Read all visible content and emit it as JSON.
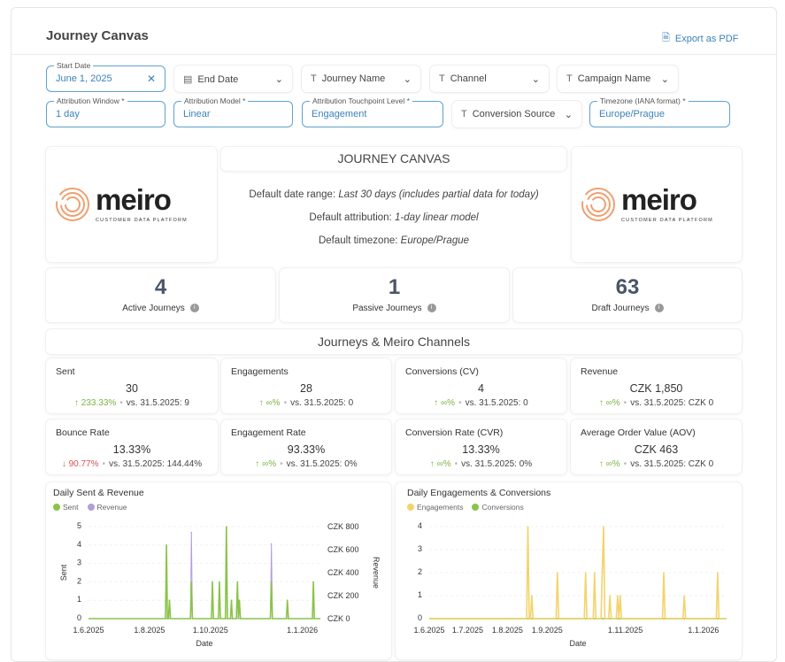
{
  "header": {
    "title": "Journey Canvas",
    "export_label": "Export as PDF"
  },
  "filters": {
    "start_date": {
      "label": "Start Date",
      "value": "June 1, 2025"
    },
    "end_date": {
      "label": "End Date"
    },
    "journey_name": {
      "label": "Journey Name"
    },
    "channel": {
      "label": "Channel"
    },
    "campaign_name": {
      "label": "Campaign Name"
    },
    "attribution_window": {
      "label": "Attribution Window *",
      "value": "1 day"
    },
    "attribution_model": {
      "label": "Attribution Model *",
      "value": "Linear"
    },
    "touchpoint_level": {
      "label": "Attribution Touchpoint Level *",
      "value": "Engagement"
    },
    "conversion_source": {
      "label": "Conversion Source"
    },
    "timezone": {
      "label": "Timezone (IANA format) *",
      "value": "Europe/Prague"
    }
  },
  "logo": {
    "name": "meiro",
    "tagline": "CUSTOMER DATA PLATFORM"
  },
  "banner": {
    "title": "JOURNEY CANVAS",
    "lines": [
      {
        "label": "Default date range:",
        "value": "Last 30 days (includes partial data for today)"
      },
      {
        "label": "Default attribution:",
        "value": "1-day linear model"
      },
      {
        "label": "Default timezone:",
        "value": "Europe/Prague"
      }
    ]
  },
  "kpis": [
    {
      "value": "4",
      "label": "Active Journeys"
    },
    {
      "value": "1",
      "label": "Passive Journeys"
    },
    {
      "value": "63",
      "label": "Draft Journeys"
    }
  ],
  "section_title": "Journeys & Meiro Channels",
  "metrics": [
    {
      "label": "Sent",
      "value": "30",
      "dir": "up",
      "change": "233.33%",
      "compare": "vs. 31.5.2025: 9"
    },
    {
      "label": "Engagements",
      "value": "28",
      "dir": "up",
      "change": "∞%",
      "compare": "vs. 31.5.2025: 0"
    },
    {
      "label": "Conversions (CV)",
      "value": "4",
      "dir": "up",
      "change": "∞%",
      "compare": "vs. 31.5.2025: 0"
    },
    {
      "label": "Revenue",
      "value": "CZK 1,850",
      "dir": "up",
      "change": "∞%",
      "compare": "vs. 31.5.2025: CZK 0"
    },
    {
      "label": "Bounce Rate",
      "value": "13.33%",
      "dir": "down",
      "change": "90.77%",
      "compare": "vs. 31.5.2025: 144.44%"
    },
    {
      "label": "Engagement Rate",
      "value": "93.33%",
      "dir": "up",
      "change": "∞%",
      "compare": "vs. 31.5.2025: 0%"
    },
    {
      "label": "Conversion Rate (CVR)",
      "value": "13.33%",
      "dir": "up",
      "change": "∞%",
      "compare": "vs. 31.5.2025: 0%"
    },
    {
      "label": "Average Order Value (AOV)",
      "value": "CZK 463",
      "dir": "up",
      "change": "∞%",
      "compare": "vs. 31.5.2025: CZK 0"
    }
  ],
  "colors": {
    "accent": "#3b82b8",
    "up": "#7cb342",
    "down": "#d9534f",
    "sent": "#8bc34a",
    "revenue": "#b39ddb",
    "engagements": "#f3d36b",
    "conversions": "#8bc34a"
  },
  "chart_data": [
    {
      "type": "line",
      "title": "Daily Sent & Revenue",
      "xlabel": "Date",
      "ylabel": "Sent",
      "y2label": "Revenue",
      "xlim": [
        "2025-06-01",
        "2026-01-19"
      ],
      "ylim": [
        0,
        5
      ],
      "y2lim": [
        0,
        800
      ],
      "xticks": [
        "1.6.2025",
        "1.8.2025",
        "1.10.2025",
        "1.1.2026"
      ],
      "yticks": [
        "0",
        "1",
        "2",
        "3",
        "4",
        "5"
      ],
      "y2ticks": [
        "CZK 0",
        "CZK 200",
        "CZK 400",
        "CZK 600",
        "CZK 800"
      ],
      "series": [
        {
          "name": "Sent",
          "axis": "left",
          "color": "#8bc34a",
          "points": [
            [
              "2025-08-18",
              4
            ],
            [
              "2025-08-21",
              1
            ],
            [
              "2025-09-12",
              2
            ],
            [
              "2025-10-03",
              2
            ],
            [
              "2025-10-10",
              2
            ],
            [
              "2025-10-17",
              5
            ],
            [
              "2025-10-22",
              1
            ],
            [
              "2025-10-28",
              2
            ],
            [
              "2025-10-30",
              1
            ],
            [
              "2025-12-01",
              2
            ],
            [
              "2025-12-17",
              1
            ],
            [
              "2026-01-12",
              2
            ]
          ]
        },
        {
          "name": "Revenue",
          "axis": "right",
          "color": "#b39ddb",
          "points": [
            [
              "2025-09-12",
              750
            ],
            [
              "2025-12-01",
              650
            ]
          ]
        }
      ]
    },
    {
      "type": "line",
      "title": "Daily Engagements & Conversions",
      "xlabel": "Date",
      "xlim": [
        "2025-06-01",
        "2026-01-19"
      ],
      "ylim": [
        0,
        4
      ],
      "xticks": [
        "1.6.2025",
        "1.7.2025",
        "1.8.2025",
        "1.9.2025",
        "1.11.2025",
        "1.1.2026"
      ],
      "yticks": [
        "0",
        "1",
        "2",
        "3",
        "4"
      ],
      "series": [
        {
          "name": "Engagements",
          "axis": "left",
          "color": "#f3d36b",
          "points": [
            [
              "2025-08-17",
              4
            ],
            [
              "2025-08-20",
              1
            ],
            [
              "2025-09-09",
              2
            ],
            [
              "2025-10-01",
              2
            ],
            [
              "2025-10-08",
              2
            ],
            [
              "2025-10-14",
              2
            ],
            [
              "2025-10-15",
              4
            ],
            [
              "2025-10-20",
              1
            ],
            [
              "2025-10-26",
              1
            ],
            [
              "2025-10-28",
              1
            ],
            [
              "2025-12-01",
              2
            ],
            [
              "2025-12-17",
              1
            ],
            [
              "2026-01-12",
              2
            ]
          ]
        },
        {
          "name": "Conversions",
          "axis": "left",
          "color": "#8bc34a",
          "points": []
        }
      ]
    }
  ]
}
